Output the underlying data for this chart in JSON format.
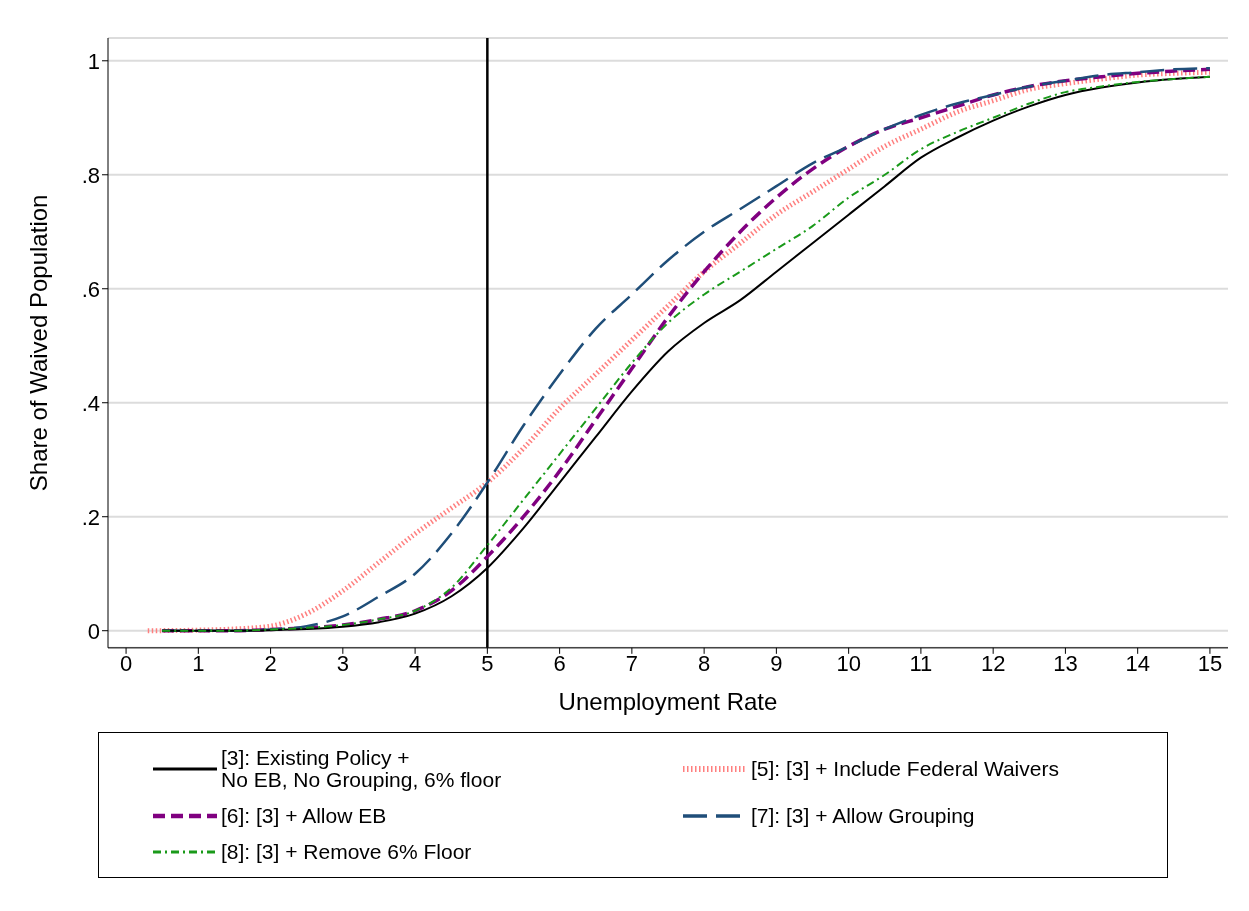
{
  "chart_data": {
    "type": "line",
    "xlabel": "Unemployment Rate",
    "ylabel": "Share of Waived Population",
    "xlim": [
      -0.25,
      15.25
    ],
    "xticks": [
      0,
      1,
      2,
      3,
      4,
      5,
      6,
      7,
      8,
      9,
      10,
      11,
      12,
      13,
      14,
      15
    ],
    "ylim": [
      -0.03,
      1.04
    ],
    "yticks": [
      0,
      {
        "value": 0.2,
        "label": ".2"
      },
      {
        "value": 0.4,
        "label": ".4"
      },
      {
        "value": 0.6,
        "label": ".6"
      },
      {
        "value": 0.8,
        "label": ".8"
      },
      1
    ],
    "grid": "y",
    "legend": "bottom",
    "marker": "none",
    "ref_lines": [
      {
        "axis": "x",
        "value": 5,
        "color": "#000000",
        "line_style": "solid"
      }
    ],
    "series": [
      {
        "name": "[3]: Existing Policy +\nNo EB, No Grouping, 6% floor",
        "color": "#000000",
        "line_style": "solid",
        "x": [
          0.5,
          1,
          1.5,
          2,
          2.5,
          3,
          3.5,
          4,
          4.5,
          5,
          5.5,
          6,
          6.5,
          7,
          7.5,
          8,
          8.5,
          9,
          9.5,
          10,
          10.5,
          11,
          11.5,
          12,
          12.5,
          13,
          13.5,
          14,
          14.5,
          15
        ],
        "values": [
          0,
          0,
          0,
          0.001,
          0.003,
          0.007,
          0.015,
          0.03,
          0.06,
          0.11,
          0.18,
          0.26,
          0.34,
          0.42,
          0.49,
          0.54,
          0.58,
          0.63,
          0.68,
          0.73,
          0.78,
          0.83,
          0.865,
          0.895,
          0.92,
          0.94,
          0.953,
          0.962,
          0.968,
          0.972
        ]
      },
      {
        "name": "[5]: [3] + Include Federal Waivers",
        "color": "#ff7f7f",
        "line_style": "dotted",
        "x": [
          0.3,
          1,
          1.5,
          2,
          2.5,
          3,
          3.5,
          4,
          4.5,
          5,
          5.5,
          6,
          6.5,
          7,
          7.5,
          8,
          8.5,
          9,
          9.5,
          10,
          10.5,
          11,
          11.5,
          12,
          12.5,
          13,
          13.5,
          14,
          14.5,
          15
        ],
        "values": [
          0,
          0.001,
          0.003,
          0.008,
          0.03,
          0.07,
          0.12,
          0.17,
          0.215,
          0.26,
          0.32,
          0.39,
          0.45,
          0.51,
          0.57,
          0.63,
          0.68,
          0.73,
          0.77,
          0.81,
          0.85,
          0.88,
          0.91,
          0.93,
          0.95,
          0.96,
          0.968,
          0.975,
          0.978,
          0.98
        ]
      },
      {
        "name": "[6]: [3] + Allow EB",
        "color": "#800080",
        "line_style": "dashed",
        "x": [
          0.5,
          1,
          1.5,
          2,
          2.5,
          3,
          3.5,
          4,
          4.5,
          5,
          5.5,
          6,
          6.5,
          7,
          7.5,
          8,
          8.5,
          9,
          9.5,
          10,
          10.5,
          11,
          11.5,
          12,
          12.5,
          13,
          13.5,
          14,
          14.5,
          15
        ],
        "values": [
          0,
          0,
          0,
          0.002,
          0.005,
          0.01,
          0.02,
          0.035,
          0.07,
          0.13,
          0.2,
          0.28,
          0.37,
          0.46,
          0.55,
          0.63,
          0.7,
          0.76,
          0.81,
          0.85,
          0.88,
          0.9,
          0.92,
          0.94,
          0.955,
          0.965,
          0.972,
          0.978,
          0.982,
          0.985
        ]
      },
      {
        "name": "[7]: [3] + Allow Grouping",
        "color": "#1f4e79",
        "line_style": "longdash",
        "x": [
          0.5,
          1,
          1.5,
          2,
          2.5,
          3,
          3.5,
          4,
          4.5,
          5,
          5.5,
          6,
          6.5,
          7,
          7.5,
          8,
          8.5,
          9,
          9.5,
          10,
          10.5,
          11,
          11.5,
          12,
          12.5,
          13,
          13.5,
          14,
          14.5,
          15
        ],
        "values": [
          0,
          0,
          0,
          0.002,
          0.008,
          0.025,
          0.06,
          0.1,
          0.17,
          0.26,
          0.36,
          0.45,
          0.53,
          0.59,
          0.65,
          0.7,
          0.74,
          0.78,
          0.82,
          0.85,
          0.88,
          0.905,
          0.925,
          0.94,
          0.955,
          0.965,
          0.975,
          0.98,
          0.985,
          0.987
        ]
      },
      {
        "name": "[8]: [3] + Remove 6% Floor",
        "color": "#1a9a1a",
        "line_style": "dashdot",
        "x": [
          0.5,
          1,
          1.5,
          2,
          2.5,
          3,
          3.5,
          4,
          4.5,
          5,
          5.5,
          6,
          6.5,
          7,
          7.5,
          8,
          8.5,
          9,
          9.5,
          10,
          10.5,
          11,
          11.5,
          12,
          12.5,
          13,
          13.5,
          14,
          14.5,
          15
        ],
        "values": [
          0,
          0,
          0,
          0.002,
          0.005,
          0.01,
          0.02,
          0.035,
          0.075,
          0.15,
          0.23,
          0.31,
          0.39,
          0.47,
          0.54,
          0.59,
          0.63,
          0.67,
          0.71,
          0.76,
          0.8,
          0.845,
          0.875,
          0.9,
          0.925,
          0.945,
          0.955,
          0.963,
          0.968,
          0.972
        ]
      }
    ]
  }
}
